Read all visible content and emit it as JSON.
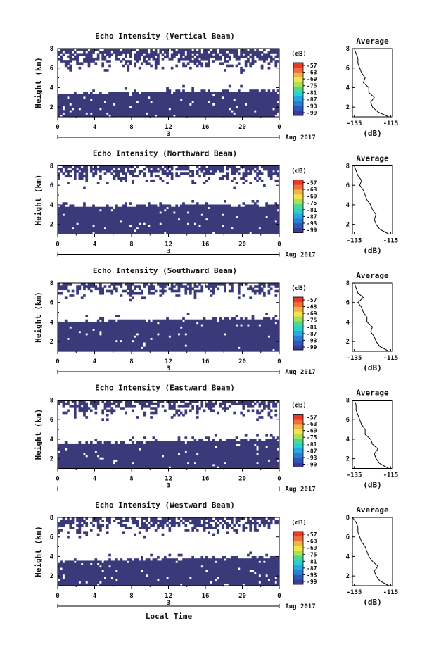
{
  "colors": {
    "echo": "#3a3a7a",
    "colorbar": [
      "#3a3a9a",
      "#2f57b8",
      "#2a7fd4",
      "#27a8e0",
      "#2ccfcf",
      "#4fd88f",
      "#a8e05a",
      "#f2e44a",
      "#f5b24a",
      "#f0703a",
      "#e83a2a"
    ]
  },
  "footer": {
    "xlabel": "Local Time"
  },
  "chart_data": [
    {
      "type": "heatmap",
      "title": "Echo Intensity (Vertical Beam)",
      "ylabel": "Height (km)",
      "ylim": [
        1,
        8
      ],
      "y_ticks": [
        "2",
        "4",
        "6",
        "8"
      ],
      "xlim": [
        0,
        24
      ],
      "x_ticks": [
        "0",
        "4",
        "8",
        "12",
        "16",
        "20",
        "0"
      ],
      "x_date_label": "3",
      "date_label": "Aug 2017",
      "colorbar_unit": "(dB)",
      "colorbar_ticks": [
        "-57",
        "-63",
        "-69",
        "-75",
        "-81",
        "-87",
        "-93",
        "-99"
      ],
      "echo_top_km": [
        3.3,
        3.4,
        3.4,
        3.5,
        3.5,
        3.6,
        3.6,
        3.6,
        3.6,
        3.7,
        3.7,
        3.7,
        3.7
      ],
      "cloud_base_km": 6.4,
      "avg_title": "Average",
      "avg_xlabel": "(dB)",
      "avg_x_ticks": [
        "-135",
        "-115"
      ],
      "avg_y_ticks": [
        "2",
        "4",
        "6",
        "8"
      ],
      "avg_profile": {
        "height_km": [
          1.0,
          1.5,
          2.0,
          2.5,
          3.0,
          3.5,
          4.0,
          4.5,
          5.0,
          5.5,
          6.0,
          6.5,
          7.0,
          7.5,
          8.0
        ],
        "db": [
          -116,
          -122,
          -125,
          -126,
          -124,
          -127,
          -127,
          -130,
          -129,
          -131,
          -132,
          -133,
          -133,
          -134,
          -135
        ]
      }
    },
    {
      "type": "heatmap",
      "title": "Echo Intensity (Northward Beam)",
      "ylabel": "Height (km)",
      "ylim": [
        1,
        8
      ],
      "y_ticks": [
        "2",
        "4",
        "6",
        "8"
      ],
      "xlim": [
        0,
        24
      ],
      "x_ticks": [
        "0",
        "4",
        "8",
        "12",
        "16",
        "20",
        "0"
      ],
      "x_date_label": "3",
      "date_label": "Aug 2017",
      "colorbar_unit": "(dB)",
      "colorbar_ticks": [
        "-57",
        "-63",
        "-69",
        "-75",
        "-81",
        "-87",
        "-93",
        "-99"
      ],
      "echo_top_km": [
        3.9,
        3.8,
        3.8,
        3.9,
        3.9,
        4.0,
        4.0,
        4.1,
        4.1,
        4.0,
        3.9,
        3.9,
        4.1
      ],
      "cloud_base_km": 6.7,
      "avg_title": "Average",
      "avg_xlabel": "(dB)",
      "avg_x_ticks": [
        "-135",
        "-115"
      ],
      "avg_y_ticks": [
        "2",
        "4",
        "6",
        "8"
      ],
      "avg_profile": {
        "height_km": [
          1.0,
          1.5,
          2.0,
          2.5,
          3.0,
          3.5,
          4.0,
          4.5,
          5.0,
          5.5,
          6.0,
          6.5,
          7.0,
          7.5,
          8.0
        ],
        "db": [
          -116,
          -121,
          -123,
          -124,
          -123,
          -125,
          -126,
          -128,
          -129,
          -130,
          -132,
          -131,
          -133,
          -134,
          -135
        ]
      }
    },
    {
      "type": "heatmap",
      "title": "Echo Intensity (Southward Beam)",
      "ylabel": "Height (km)",
      "ylim": [
        1,
        8
      ],
      "y_ticks": [
        "2",
        "4",
        "6",
        "8"
      ],
      "xlim": [
        0,
        24
      ],
      "x_ticks": [
        "0",
        "4",
        "8",
        "12",
        "16",
        "20",
        "0"
      ],
      "x_date_label": "3",
      "date_label": "Aug 2017",
      "colorbar_unit": "(dB)",
      "colorbar_ticks": [
        "-57",
        "-63",
        "-69",
        "-75",
        "-81",
        "-87",
        "-93",
        "-99"
      ],
      "echo_top_km": [
        4.0,
        4.1,
        4.1,
        4.2,
        4.2,
        4.2,
        4.3,
        4.3,
        4.3,
        4.4,
        4.4,
        4.4,
        4.5
      ],
      "cloud_base_km": 7.0,
      "avg_title": "Average",
      "avg_xlabel": "(dB)",
      "avg_x_ticks": [
        "-135",
        "-115"
      ],
      "avg_y_ticks": [
        "2",
        "4",
        "6",
        "8"
      ],
      "avg_profile": {
        "height_km": [
          1.0,
          1.5,
          2.0,
          2.5,
          3.0,
          3.5,
          4.0,
          4.5,
          5.0,
          5.5,
          6.0,
          6.5,
          7.0,
          7.5,
          8.0
        ],
        "db": [
          -116,
          -121,
          -123,
          -124,
          -126,
          -125,
          -128,
          -128,
          -130,
          -131,
          -133,
          -130,
          -133,
          -134,
          -135
        ]
      }
    },
    {
      "type": "heatmap",
      "title": "Echo Intensity (Eastward Beam)",
      "ylabel": "Height (km)",
      "ylim": [
        1,
        8
      ],
      "y_ticks": [
        "2",
        "4",
        "6",
        "8"
      ],
      "xlim": [
        0,
        24
      ],
      "x_ticks": [
        "0",
        "4",
        "8",
        "12",
        "16",
        "20",
        "0"
      ],
      "x_date_label": "3",
      "date_label": "Aug 2017",
      "colorbar_unit": "(dB)",
      "colorbar_ticks": [
        "-57",
        "-63",
        "-69",
        "-75",
        "-81",
        "-87",
        "-93",
        "-99"
      ],
      "echo_top_km": [
        3.6,
        3.6,
        3.7,
        3.7,
        3.7,
        3.8,
        3.8,
        3.8,
        3.9,
        3.9,
        3.9,
        4.0,
        4.0
      ],
      "cloud_base_km": 6.9,
      "avg_title": "Average",
      "avg_xlabel": "(dB)",
      "avg_x_ticks": [
        "-135",
        "-115"
      ],
      "avg_y_ticks": [
        "2",
        "4",
        "6",
        "8"
      ],
      "avg_profile": {
        "height_km": [
          1.0,
          1.5,
          2.0,
          2.5,
          3.0,
          3.5,
          4.0,
          4.5,
          5.0,
          5.5,
          6.0,
          6.5,
          7.0,
          7.5,
          8.0
        ],
        "db": [
          -116,
          -121,
          -123,
          -124,
          -122,
          -125,
          -126,
          -129,
          -129,
          -131,
          -132,
          -133,
          -134,
          -134,
          -135
        ]
      }
    },
    {
      "type": "heatmap",
      "title": "Echo Intensity (Westward Beam)",
      "ylabel": "Height (km)",
      "ylim": [
        1,
        8
      ],
      "y_ticks": [
        "2",
        "4",
        "6",
        "8"
      ],
      "xlim": [
        0,
        24
      ],
      "x_ticks": [
        "0",
        "4",
        "8",
        "12",
        "16",
        "20",
        "0"
      ],
      "x_date_label": "3",
      "date_label": "Aug 2017",
      "colorbar_unit": "(dB)",
      "colorbar_ticks": [
        "-57",
        "-63",
        "-69",
        "-75",
        "-81",
        "-87",
        "-93",
        "-99"
      ],
      "echo_top_km": [
        3.5,
        3.5,
        3.6,
        3.6,
        3.7,
        3.7,
        3.8,
        3.8,
        3.8,
        3.9,
        3.9,
        3.9,
        4.0
      ],
      "cloud_base_km": 6.8,
      "avg_title": "Average",
      "avg_xlabel": "(dB)",
      "avg_x_ticks": [
        "-135",
        "-115"
      ],
      "avg_y_ticks": [
        "2",
        "4",
        "6",
        "8"
      ],
      "avg_profile": {
        "height_km": [
          1.0,
          1.5,
          2.0,
          2.5,
          3.0,
          3.5,
          4.0,
          4.5,
          5.0,
          5.5,
          6.0,
          6.5,
          7.0,
          7.5,
          8.0
        ],
        "db": [
          -116,
          -121,
          -123,
          -124,
          -122,
          -125,
          -127,
          -128,
          -129,
          -131,
          -132,
          -133,
          -133,
          -134,
          -136
        ]
      }
    }
  ]
}
